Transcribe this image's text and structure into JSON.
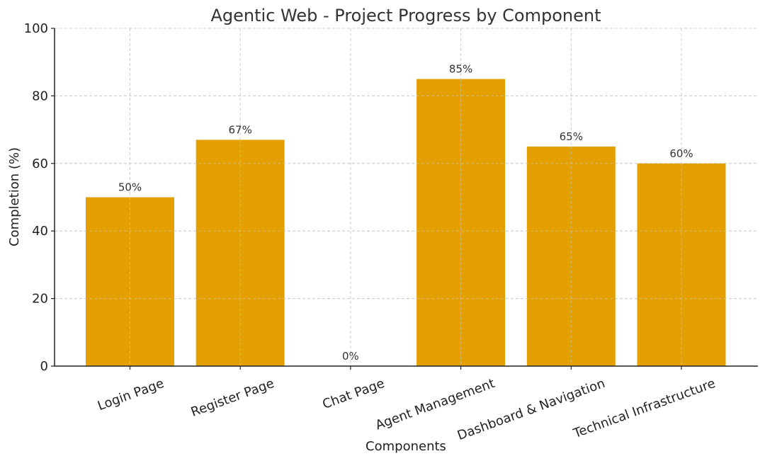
{
  "chart_data": {
    "type": "bar",
    "title": "Agentic Web - Project Progress by Component",
    "xlabel": "Components",
    "ylabel": "Completion (%)",
    "categories": [
      "Login Page",
      "Register Page",
      "Chat Page",
      "Agent Management",
      "Dashboard & Navigation",
      "Technical Infrastructure"
    ],
    "values": [
      50,
      67,
      0,
      85,
      65,
      60
    ],
    "data_labels": [
      "50%",
      "67%",
      "0%",
      "85%",
      "65%",
      "60%"
    ],
    "ylim": [
      0,
      100
    ],
    "yticks": [
      0,
      20,
      40,
      60,
      80,
      100
    ],
    "grid": true,
    "bar_color": "#E3A000",
    "legend": "none"
  }
}
